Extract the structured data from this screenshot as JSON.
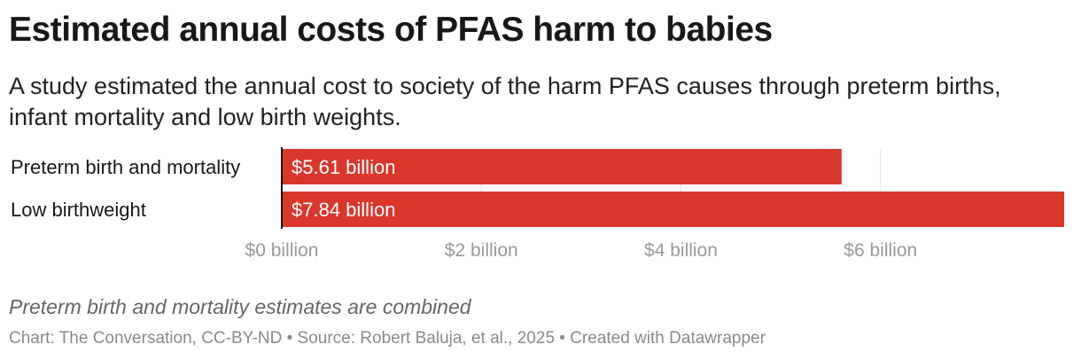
{
  "header": {
    "title": "Estimated annual costs of PFAS harm to babies",
    "subtitle": "A study estimated the annual cost to society of the harm PFAS causes through preterm births, infant mortality and low birth weights."
  },
  "chart_data": {
    "type": "bar",
    "orientation": "horizontal",
    "categories": [
      "Preterm birth and mortality",
      "Low birthweight"
    ],
    "values": [
      5.61,
      7.84
    ],
    "value_labels": [
      "$5.61 billion",
      "$7.84 billion"
    ],
    "unit": "billion USD",
    "xlim": [
      0,
      7.84
    ],
    "xticks": [
      0,
      2,
      4,
      6
    ],
    "xtick_labels": [
      "$0 billion",
      "$2 billion",
      "$4 billion",
      "$6 billion"
    ],
    "grid": true,
    "bar_color": "#d9372b",
    "label_color": "#ffffff"
  },
  "footer": {
    "note": "Preterm birth and mortality estimates are combined",
    "credit": "Chart: The Conversation, CC-BY-ND • Source: Robert Baluja, et al., 2025 • Created with Datawrapper"
  }
}
